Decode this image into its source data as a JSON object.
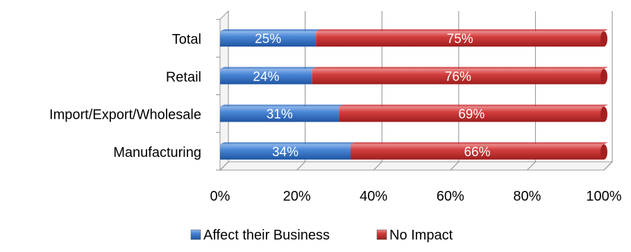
{
  "chart_data": {
    "type": "bar",
    "orientation": "horizontal",
    "stacked": true,
    "percent_stacked": true,
    "categories": [
      "Total",
      "Retail",
      "Import/Export/Wholesale",
      "Manufacturing"
    ],
    "series": [
      {
        "name": "Affect their Business",
        "values": [
          25,
          24,
          31,
          34
        ],
        "color": "#2f6fc4"
      },
      {
        "name": "No Impact",
        "values": [
          75,
          76,
          69,
          66
        ],
        "color": "#c8262a"
      }
    ],
    "data_labels": [
      [
        "25%",
        "24%",
        "31%",
        "34%"
      ],
      [
        "75%",
        "76%",
        "69%",
        "66%"
      ]
    ],
    "x_ticks": [
      "0%",
      "20%",
      "40%",
      "60%",
      "80%",
      "100%"
    ],
    "xlim": [
      0,
      100
    ],
    "grid": true,
    "legend_position": "bottom",
    "style_3d": true
  }
}
